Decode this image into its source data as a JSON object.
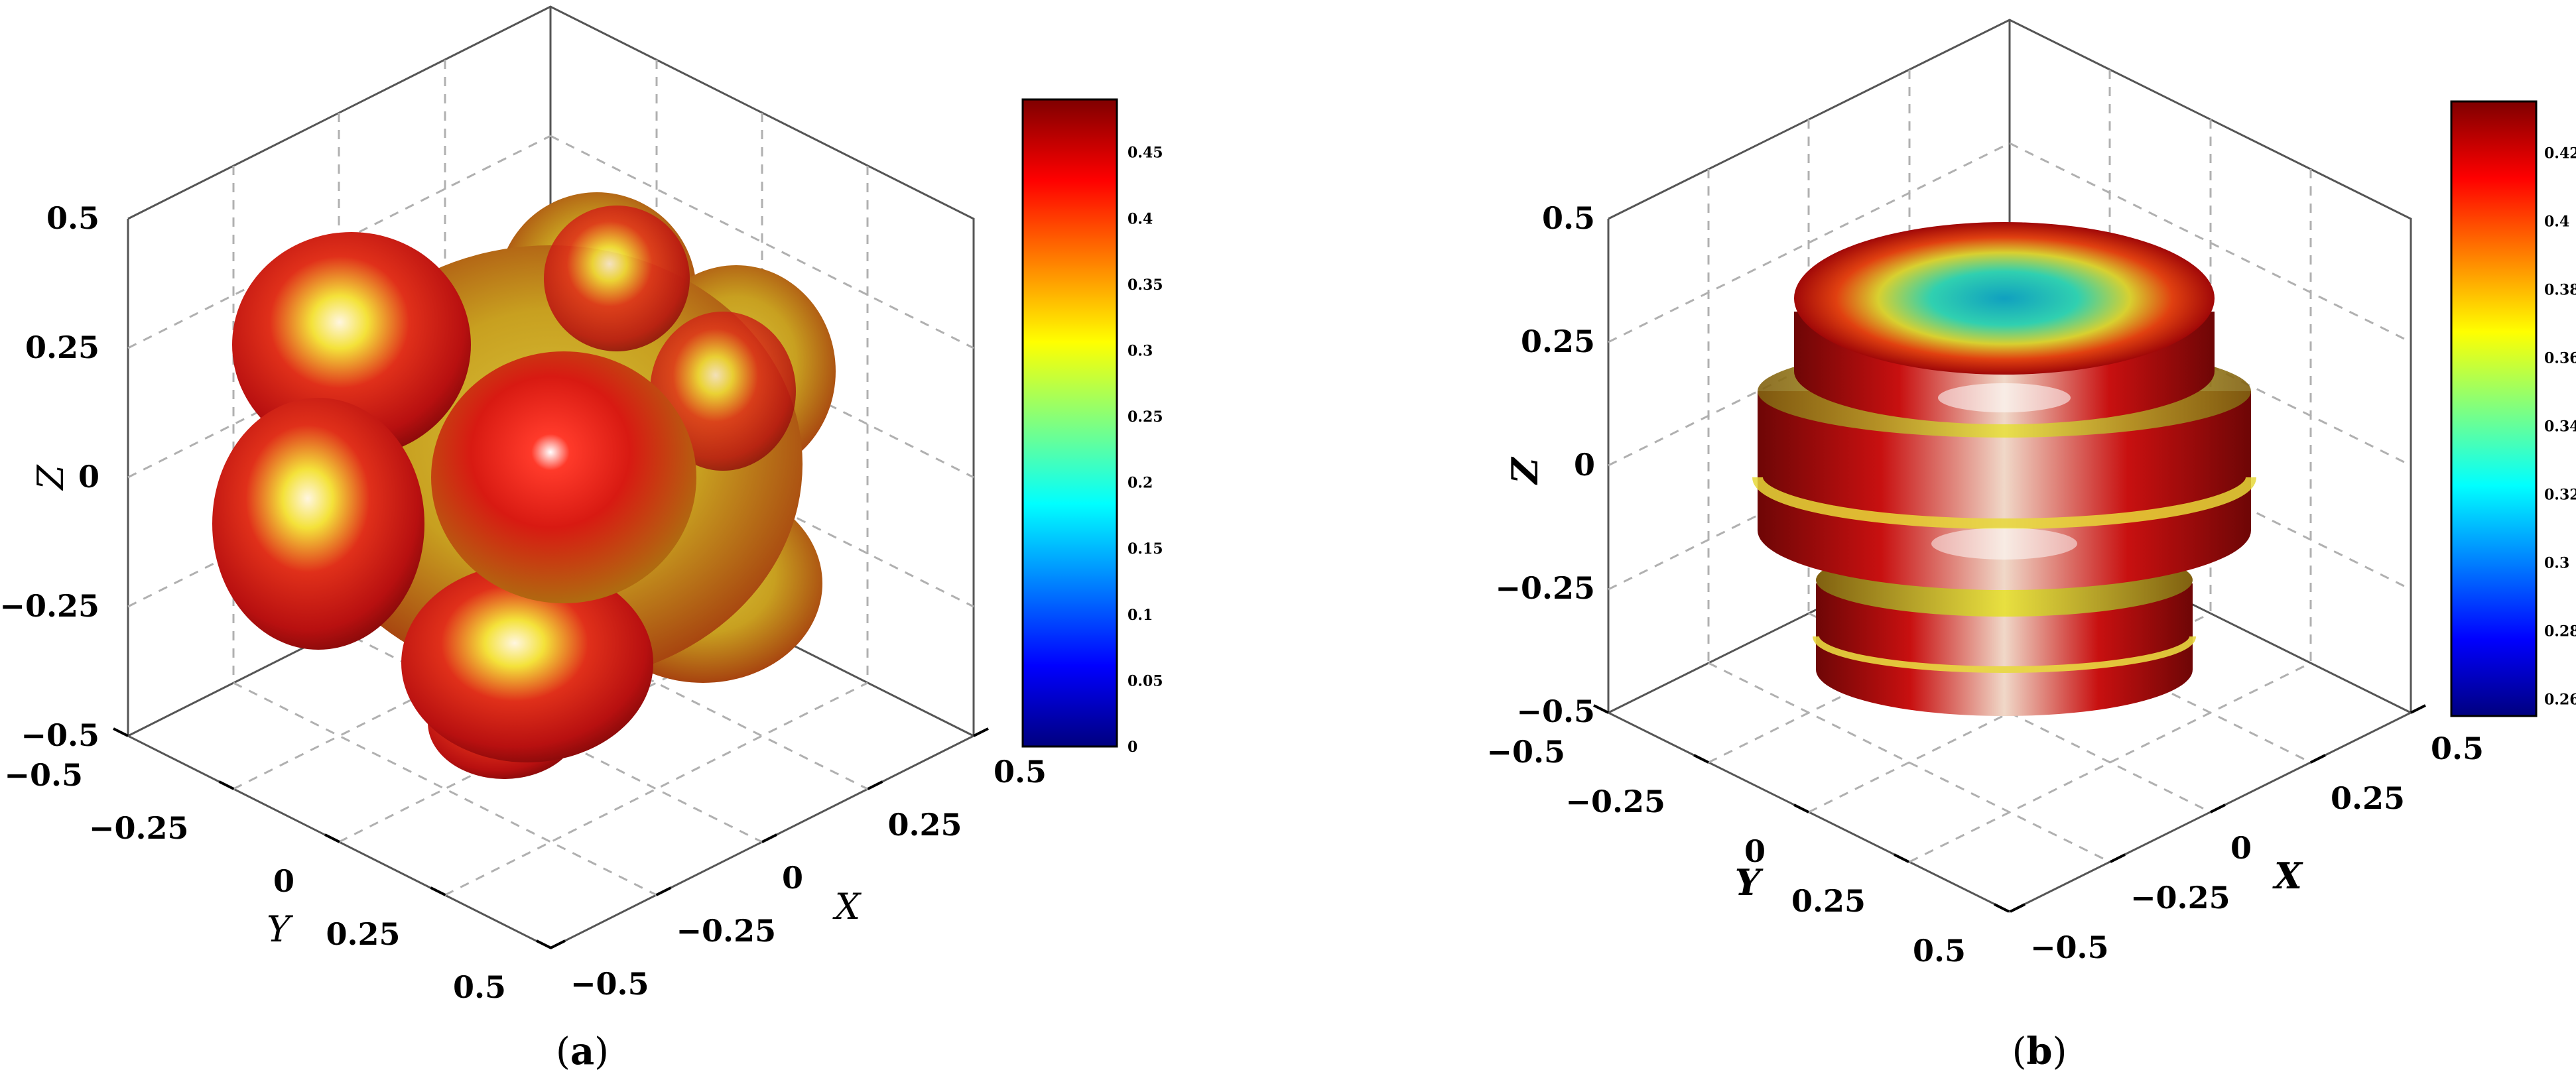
{
  "chart_data": [
    {
      "type": "surface3d",
      "panel_label": "(a)",
      "label_open": "(",
      "label_letter": "a",
      "label_close": ")",
      "xlabel": "X",
      "ylabel": "Y",
      "zlabel": "Z",
      "xlim": [
        -0.5,
        0.5
      ],
      "ylim": [
        -0.5,
        0.5
      ],
      "zlim": [
        -0.5,
        0.5
      ],
      "x_ticks": [
        "−0.5",
        "−0.25",
        "0",
        "0.25",
        "0.5"
      ],
      "y_ticks": [
        "−0.5",
        "−0.25",
        "0",
        "0.25",
        "0.5"
      ],
      "z_ticks": [
        "0.5",
        "0.25",
        "0",
        "−0.25",
        "−0.5"
      ],
      "colorbar": {
        "colormap": "jet",
        "range": [
          0,
          0.49
        ],
        "ticks": [
          "0.45",
          "0.4",
          "0.35",
          "0.3",
          "0.25",
          "0.2",
          "0.15",
          "0.1",
          "0.05",
          "0"
        ]
      },
      "shape": "cubic-anisotropy lobed surface"
    },
    {
      "type": "surface3d",
      "panel_label": "(b)",
      "label_open": "(",
      "label_letter": "b",
      "label_close": ")",
      "xlabel": "X",
      "ylabel": "Y",
      "zlabel": "Z",
      "xlim": [
        -0.5,
        0.5
      ],
      "ylim": [
        -0.5,
        0.5
      ],
      "zlim": [
        -0.5,
        0.5
      ],
      "x_ticks": [
        "−0.5",
        "−0.25",
        "0",
        "0.25",
        "0.5"
      ],
      "y_ticks": [
        "−0.5",
        "−0.25",
        "0",
        "0.25",
        "0.5"
      ],
      "z_ticks": [
        "0.5",
        "0.25",
        "0",
        "−0.25",
        "−0.5"
      ],
      "colorbar": {
        "colormap": "jet",
        "range": [
          0.255,
          0.435
        ],
        "ticks": [
          "0.42",
          "0.4",
          "0.38",
          "0.36",
          "0.34",
          "0.32",
          "0.3",
          "0.28",
          "0.26"
        ]
      },
      "shape": "axially symmetric banded surface"
    }
  ]
}
